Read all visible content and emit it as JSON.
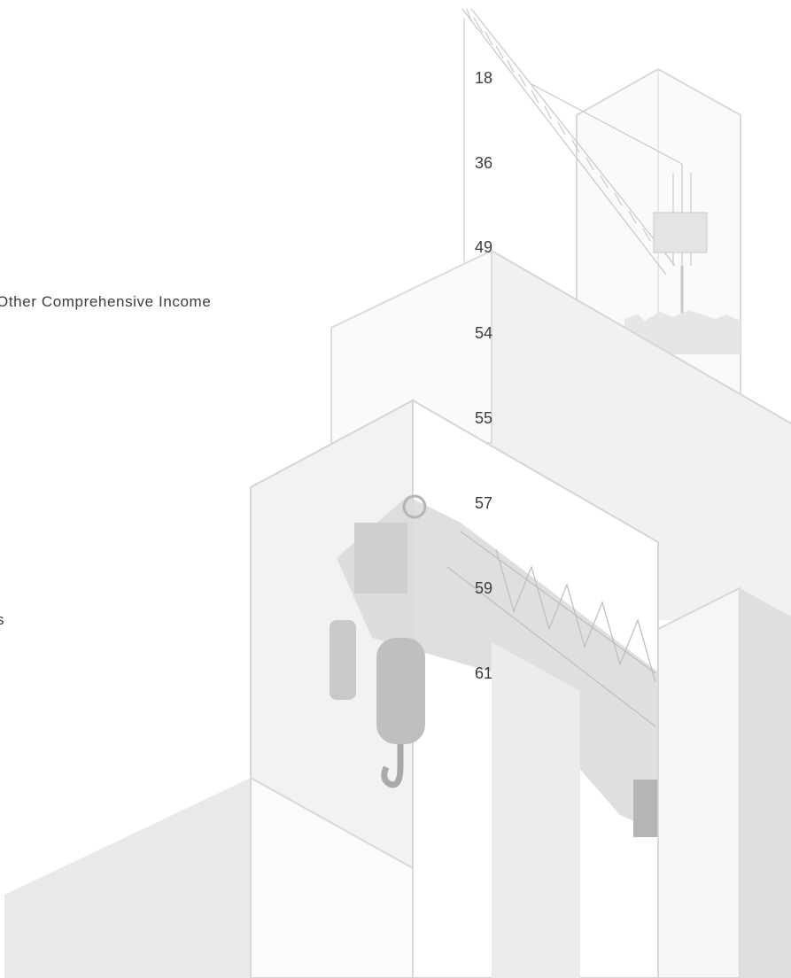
{
  "toc": {
    "labels": {
      "oci": "Other Comprehensive Income",
      "s_fragment": "s"
    },
    "page_numbers": [
      "18",
      "36",
      "49",
      "54",
      "55",
      "57",
      "59",
      "61"
    ]
  }
}
